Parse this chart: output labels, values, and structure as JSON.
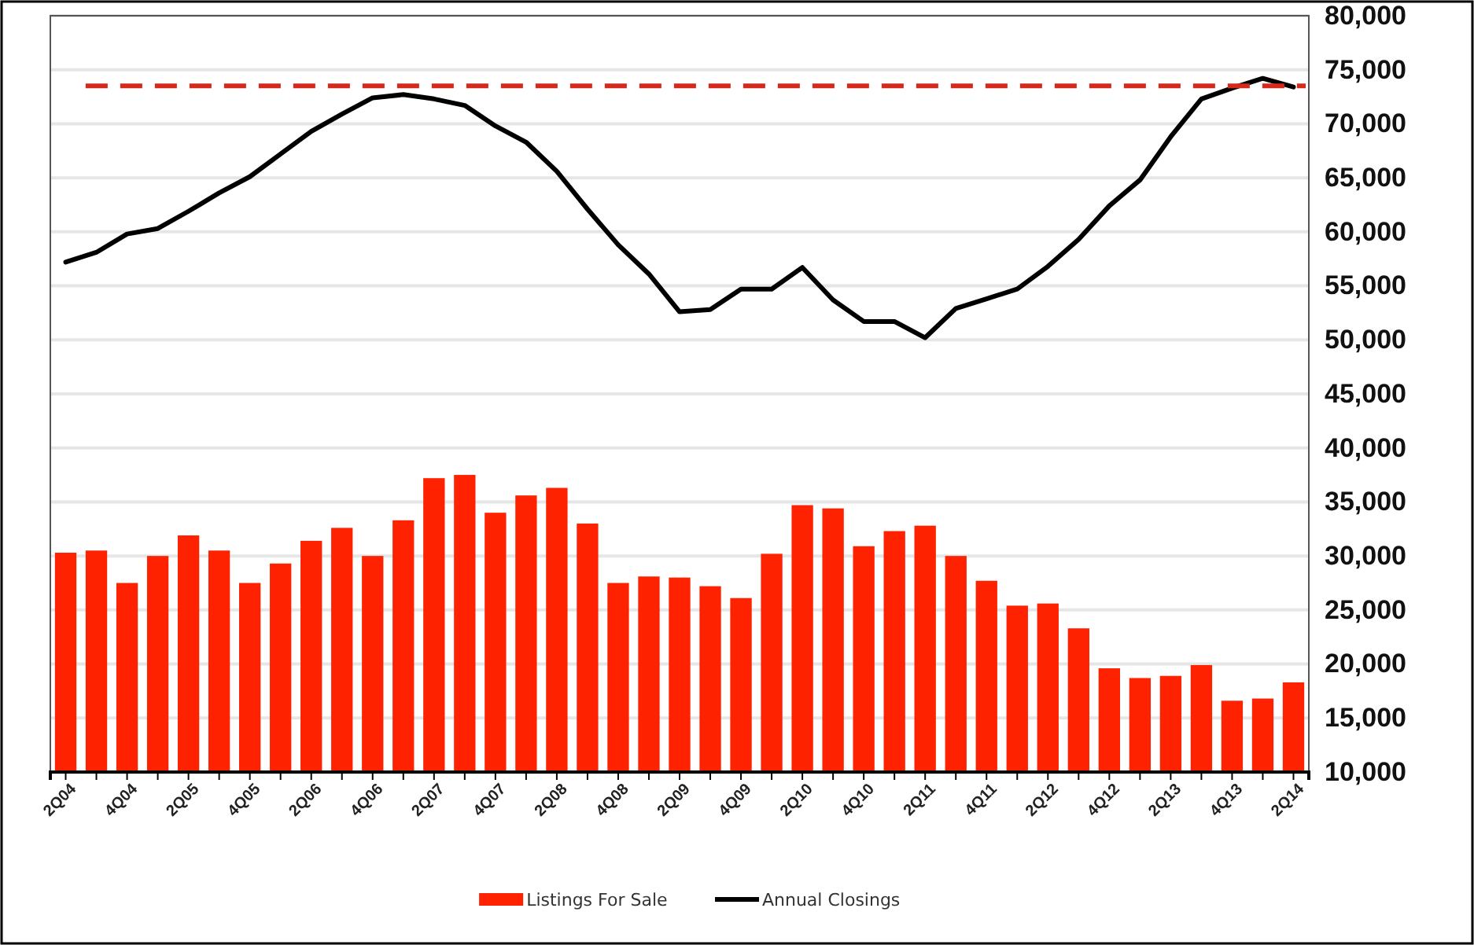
{
  "chart_data": {
    "type": "bar",
    "categories": [
      "2Q04",
      null,
      "4Q04",
      null,
      "2Q05",
      null,
      "4Q05",
      null,
      "2Q06",
      null,
      "4Q06",
      null,
      "2Q07",
      null,
      "4Q07",
      null,
      "2Q08",
      null,
      "4Q08",
      null,
      "2Q09",
      null,
      "4Q09",
      null,
      "2Q10",
      null,
      "4Q10",
      null,
      "2Q11",
      null,
      "4Q11",
      null,
      "2Q12",
      null,
      "4Q12",
      null,
      "2Q13",
      null,
      "4Q13",
      null,
      "2Q14"
    ],
    "series": [
      {
        "name": "Listings For Sale",
        "color": "#ff2200",
        "values": [
          30300,
          30500,
          27500,
          30000,
          31900,
          30500,
          27500,
          29300,
          31400,
          32600,
          30000,
          33300,
          37200,
          37500,
          34000,
          35600,
          36300,
          33000,
          27500,
          28100,
          28000,
          27200,
          26100,
          30200,
          34700,
          34400,
          30900,
          32300,
          32800,
          30000,
          27700,
          25400,
          25600,
          23300,
          19600,
          18700,
          18900,
          19900,
          16600,
          16800,
          18300
        ]
      },
      {
        "name": "Annual Closings",
        "type": "line",
        "color": "#000000",
        "values": [
          57200,
          58100,
          59800,
          60300,
          61900,
          63600,
          65100,
          67200,
          69300,
          70900,
          72400,
          72700,
          72300,
          71700,
          69800,
          68300,
          65600,
          62100,
          58800,
          56100,
          52600,
          52800,
          54700,
          54700,
          56700,
          53700,
          51700,
          51700,
          50200,
          52900,
          53800,
          54700,
          56800,
          59300,
          62400,
          64800,
          68800,
          72300,
          73300,
          74200,
          73400
        ]
      }
    ],
    "ylim": [
      10000,
      80000
    ],
    "yticks": [
      {
        "value": 10000,
        "label": "10,000"
      },
      {
        "value": 15000,
        "label": "15,000"
      },
      {
        "value": 20000,
        "label": "20,000"
      },
      {
        "value": 25000,
        "label": "25,000"
      },
      {
        "value": 30000,
        "label": "30,000"
      },
      {
        "value": 35000,
        "label": "35,000"
      },
      {
        "value": 40000,
        "label": "40,000"
      },
      {
        "value": 45000,
        "label": "45,000"
      },
      {
        "value": 50000,
        "label": "50,000"
      },
      {
        "value": 55000,
        "label": "55,000"
      },
      {
        "value": 60000,
        "label": "60,000"
      },
      {
        "value": 65000,
        "label": "65,000"
      },
      {
        "value": 70000,
        "label": "70,000"
      },
      {
        "value": 75000,
        "label": "75,000"
      },
      {
        "value": 80000,
        "label": "80,000"
      }
    ],
    "ref_lines": [
      {
        "axis": "y",
        "value": 73500,
        "color": "#d42a1e",
        "line_style": "dashed"
      }
    ],
    "grid": "y",
    "legend": "bottom",
    "line_style": "solid",
    "marker": "none"
  }
}
